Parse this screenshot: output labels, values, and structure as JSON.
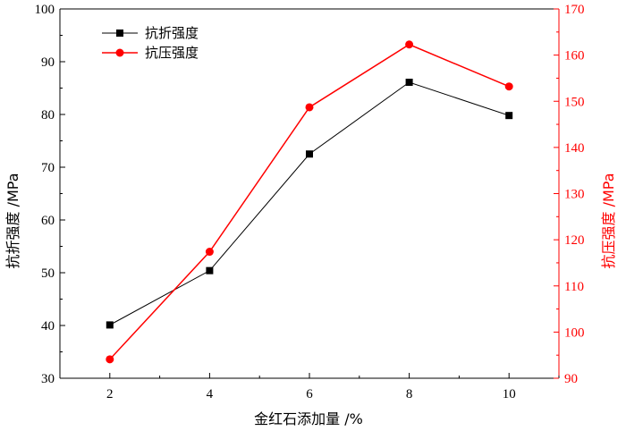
{
  "chart_data": {
    "type": "line",
    "x": [
      2,
      4,
      6,
      8,
      10
    ],
    "xlabel": "金红石添加量 /%",
    "ylabel_left": "抗折强度 /MPa",
    "ylabel_right": "抗压强度 /MPa",
    "xlim": [
      1,
      11
    ],
    "xticks": [
      2,
      4,
      6,
      8,
      10
    ],
    "ylim_left": [
      30,
      100
    ],
    "yticks_left": [
      30,
      40,
      50,
      60,
      70,
      80,
      90,
      100
    ],
    "ylim_right": [
      90,
      170
    ],
    "yticks_right": [
      90,
      100,
      110,
      120,
      130,
      140,
      150,
      160,
      170
    ],
    "grid": false,
    "legend_position": "top-left",
    "series": [
      {
        "name": "抗折强度",
        "axis": "left",
        "color": "#000000",
        "marker": "square",
        "values": [
          40.1,
          50.4,
          72.5,
          86.1,
          79.8
        ]
      },
      {
        "name": "抗压强度",
        "axis": "right",
        "color": "#ff0000",
        "marker": "circle",
        "values": [
          94.1,
          117.4,
          148.7,
          162.3,
          153.2
        ]
      }
    ]
  }
}
